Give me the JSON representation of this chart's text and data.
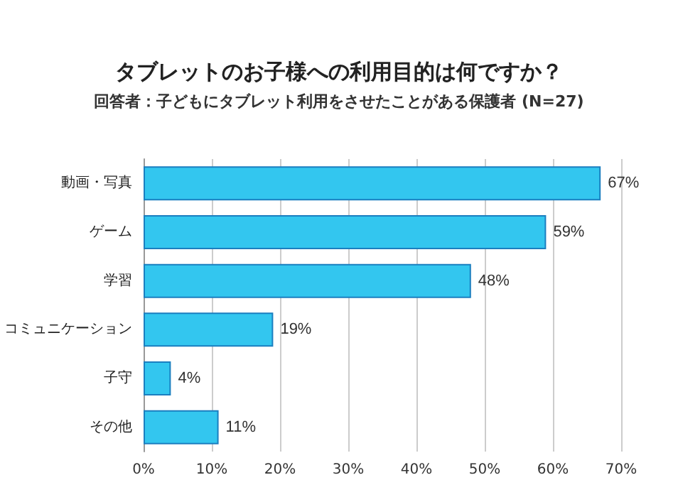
{
  "chart_data": {
    "type": "bar",
    "orientation": "horizontal",
    "title": "タブレットのお子様への利用目的は何ですか？",
    "subtitle": "回答者：子どもにタブレット利用をさせたことがある保護者 (N=27)",
    "categories": [
      "動画・写真",
      "ゲーム",
      "学習",
      "コミュニケーション",
      "子守",
      "その他"
    ],
    "values": [
      67,
      59,
      48,
      19,
      4,
      11
    ],
    "value_labels": [
      "67%",
      "59%",
      "48%",
      "19%",
      "4%",
      "11%"
    ],
    "color": "#33c6ef",
    "xlim": [
      0,
      70
    ],
    "xticks": [
      {
        "value": 0,
        "label": "0%"
      },
      {
        "value": 10,
        "label": "10%"
      },
      {
        "value": 20,
        "label": "20%"
      },
      {
        "value": 30,
        "label": "30%"
      },
      {
        "value": 40,
        "label": "40%"
      },
      {
        "value": 50,
        "label": "50%"
      },
      {
        "value": 60,
        "label": "60%"
      },
      {
        "value": 70,
        "label": "70%"
      }
    ],
    "grid": "x"
  }
}
